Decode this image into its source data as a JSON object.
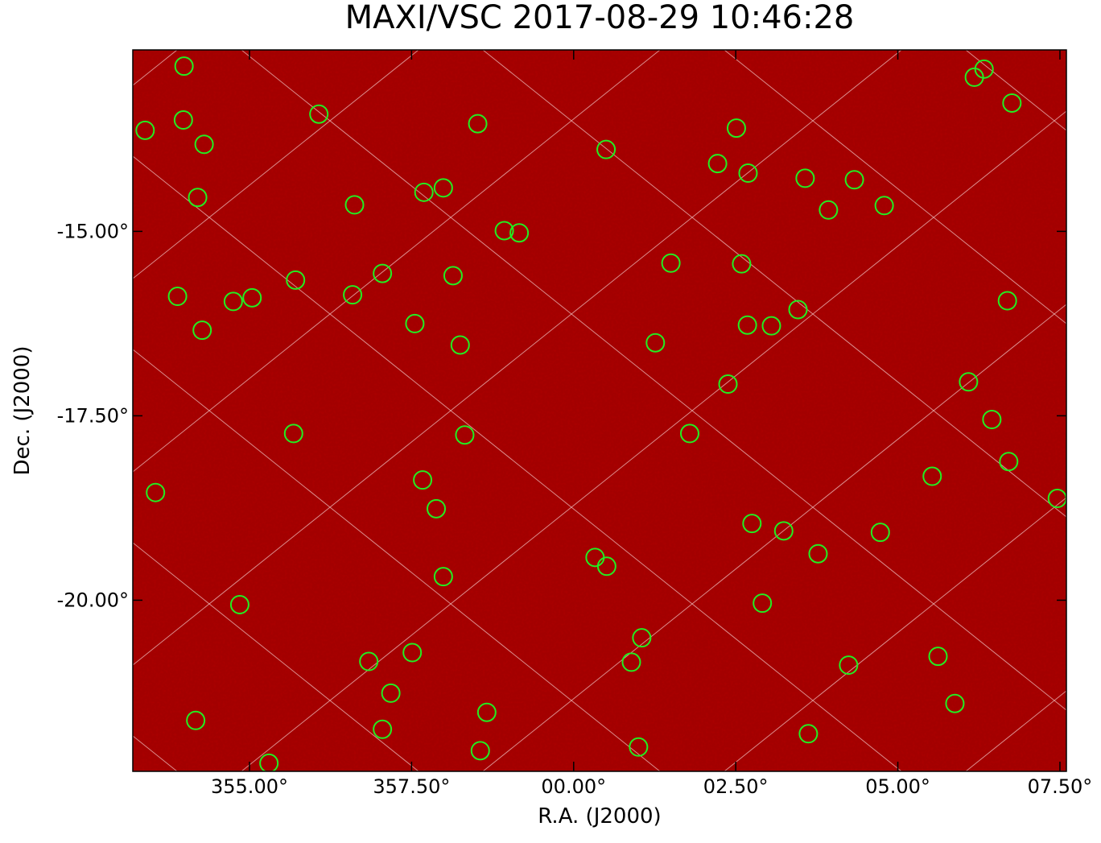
{
  "chart_data": {
    "type": "sky_map",
    "title": "MAXI/VSC 2017-08-29 10:46:28",
    "xlabel": "R.A. (J2000)",
    "ylabel": "Dec. (J2000)",
    "xlim": [
      353.2,
      367.6
    ],
    "ylim": [
      -22.32,
      -12.54
    ],
    "xticks": [
      {
        "value": 355,
        "label": "355.00°"
      },
      {
        "value": 357.5,
        "label": "357.50°"
      },
      {
        "value": 360,
        "label": "00.00°"
      },
      {
        "value": 362.5,
        "label": "02.50°"
      },
      {
        "value": 365,
        "label": "05.00°"
      },
      {
        "value": 367.5,
        "label": "07.50°"
      }
    ],
    "yticks": [
      {
        "value": -15,
        "label": "-15.00°"
      },
      {
        "value": -17.5,
        "label": "-17.50°"
      },
      {
        "value": -20,
        "label": "-20.00°"
      }
    ],
    "marker_color": "#22ee22",
    "background_color": "#a30000",
    "sources": {
      "ra": [
        353.99,
        353.39,
        353.98,
        354.3,
        354.2,
        356.07,
        358.52,
        356.62,
        357.69,
        357.99,
        358.93,
        359.16,
        360.5,
        362.51,
        362.22,
        362.69,
        363.57,
        364.33,
        363.93,
        364.79,
        366.18,
        366.33,
        366.76,
        353.89,
        354.75,
        355.04,
        355.71,
        354.27,
        356.59,
        357.05,
        358.14,
        357.55,
        358.25,
        361.5,
        362.59,
        363.46,
        362.68,
        363.05,
        361.26,
        362.38,
        366.69,
        366.09,
        366.45,
        355.68,
        358.32,
        361.79,
        353.55,
        357.67,
        357.88,
        365.53,
        366.71,
        367.46,
        362.75,
        363.24,
        364.73,
        363.77,
        360.33,
        360.51,
        357.99,
        354.85,
        362.91,
        361.05,
        356.84,
        357.51,
        360.89,
        364.24,
        365.62,
        357.18,
        358.66,
        365.88,
        354.17,
        357.05,
        363.62,
        361.0,
        358.56,
        355.3
      ],
      "dec": [
        -12.76,
        -13.63,
        -13.49,
        -13.82,
        -14.54,
        -13.41,
        -13.54,
        -14.64,
        -14.47,
        -14.41,
        -14.99,
        -15.02,
        -13.89,
        -13.6,
        -14.08,
        -14.21,
        -14.28,
        -14.3,
        -14.71,
        -14.65,
        -12.91,
        -12.8,
        -13.26,
        -15.88,
        -15.95,
        -15.9,
        -15.66,
        -16.34,
        -15.86,
        -15.57,
        -15.6,
        -16.25,
        -16.54,
        -15.43,
        -15.44,
        -16.06,
        -16.27,
        -16.28,
        -16.51,
        -17.07,
        -15.94,
        -17.04,
        -17.55,
        -17.74,
        -17.76,
        -17.74,
        -18.54,
        -18.37,
        -18.76,
        -18.32,
        -18.12,
        -18.62,
        -18.96,
        -19.06,
        -19.08,
        -19.37,
        -19.42,
        -19.54,
        -19.68,
        -20.06,
        -20.04,
        -20.51,
        -20.83,
        -20.71,
        -20.84,
        -20.88,
        -20.76,
        -21.26,
        -21.52,
        -21.4,
        -21.63,
        -21.75,
        -21.81,
        -21.99,
        -22.04,
        -22.21
      ]
    }
  }
}
